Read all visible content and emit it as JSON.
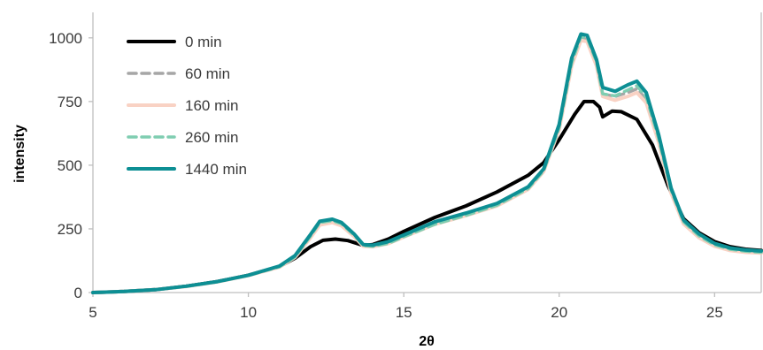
{
  "chart_data": {
    "type": "line",
    "title": "",
    "xlabel": "2θ",
    "ylabel": "intensity",
    "xlim": [
      5,
      26.5
    ],
    "ylim": [
      0,
      1100
    ],
    "x_ticks": [
      5,
      10,
      15,
      20,
      25
    ],
    "y_ticks": [
      0,
      250,
      500,
      750,
      1000
    ],
    "grid": false,
    "legend_position": "top-left",
    "series": [
      {
        "name": "0 min",
        "color": "#000000",
        "dash": "solid",
        "points": [
          [
            5,
            0
          ],
          [
            6,
            4
          ],
          [
            7,
            11
          ],
          [
            8,
            25
          ],
          [
            9,
            43
          ],
          [
            10,
            68
          ],
          [
            11,
            102
          ],
          [
            11.5,
            135
          ],
          [
            12,
            180
          ],
          [
            12.4,
            205
          ],
          [
            12.8,
            210
          ],
          [
            13.2,
            204
          ],
          [
            13.7,
            185
          ],
          [
            14,
            188
          ],
          [
            14.5,
            210
          ],
          [
            15,
            240
          ],
          [
            16,
            295
          ],
          [
            17,
            340
          ],
          [
            18,
            395
          ],
          [
            19,
            460
          ],
          [
            19.5,
            510
          ],
          [
            20,
            600
          ],
          [
            20.5,
            700
          ],
          [
            20.8,
            750
          ],
          [
            21.1,
            750
          ],
          [
            21.3,
            728
          ],
          [
            21.4,
            690
          ],
          [
            21.7,
            712
          ],
          [
            22,
            710
          ],
          [
            22.5,
            680
          ],
          [
            23,
            580
          ],
          [
            23.5,
            420
          ],
          [
            24,
            290
          ],
          [
            24.5,
            235
          ],
          [
            25,
            200
          ],
          [
            25.5,
            180
          ],
          [
            26,
            170
          ],
          [
            26.5,
            165
          ]
        ]
      },
      {
        "name": "60 min",
        "color": "#a6a6a6",
        "dash": "dashed",
        "points": [
          [
            5,
            0
          ],
          [
            6,
            4
          ],
          [
            7,
            11
          ],
          [
            8,
            24
          ],
          [
            9,
            42
          ],
          [
            10,
            67
          ],
          [
            11,
            102
          ],
          [
            11.5,
            140
          ],
          [
            12,
            220
          ],
          [
            12.3,
            272
          ],
          [
            12.7,
            280
          ],
          [
            13,
            268
          ],
          [
            13.4,
            225
          ],
          [
            13.7,
            185
          ],
          [
            14,
            183
          ],
          [
            14.5,
            195
          ],
          [
            15,
            220
          ],
          [
            16,
            270
          ],
          [
            17,
            305
          ],
          [
            18,
            345
          ],
          [
            19,
            410
          ],
          [
            19.5,
            480
          ],
          [
            20,
            650
          ],
          [
            20.4,
            900
          ],
          [
            20.7,
            1000
          ],
          [
            20.9,
            995
          ],
          [
            21.2,
            900
          ],
          [
            21.4,
            780
          ],
          [
            21.8,
            770
          ],
          [
            22.2,
            785
          ],
          [
            22.5,
            800
          ],
          [
            22.8,
            760
          ],
          [
            23.2,
            600
          ],
          [
            23.6,
            400
          ],
          [
            24,
            280
          ],
          [
            24.5,
            225
          ],
          [
            25,
            190
          ],
          [
            25.5,
            172
          ],
          [
            26,
            164
          ],
          [
            26.5,
            160
          ]
        ]
      },
      {
        "name": "160 min",
        "color": "#f9d2c4",
        "dash": "solid",
        "points": [
          [
            5,
            0
          ],
          [
            6,
            4
          ],
          [
            7,
            11
          ],
          [
            8,
            24
          ],
          [
            9,
            42
          ],
          [
            10,
            67
          ],
          [
            11,
            100
          ],
          [
            11.5,
            138
          ],
          [
            12,
            215
          ],
          [
            12.3,
            265
          ],
          [
            12.7,
            275
          ],
          [
            13,
            262
          ],
          [
            13.4,
            220
          ],
          [
            13.7,
            182
          ],
          [
            14,
            180
          ],
          [
            14.5,
            192
          ],
          [
            15,
            218
          ],
          [
            16,
            268
          ],
          [
            17,
            302
          ],
          [
            18,
            340
          ],
          [
            19,
            405
          ],
          [
            19.5,
            475
          ],
          [
            20,
            640
          ],
          [
            20.4,
            890
          ],
          [
            20.7,
            990
          ],
          [
            20.9,
            985
          ],
          [
            21.2,
            890
          ],
          [
            21.4,
            770
          ],
          [
            21.8,
            755
          ],
          [
            22.2,
            770
          ],
          [
            22.5,
            785
          ],
          [
            22.8,
            745
          ],
          [
            23.2,
            590
          ],
          [
            23.6,
            390
          ],
          [
            24,
            270
          ],
          [
            24.5,
            215
          ],
          [
            25,
            182
          ],
          [
            25.5,
            165
          ],
          [
            26,
            158
          ],
          [
            26.5,
            155
          ]
        ]
      },
      {
        "name": "260 min",
        "color": "#7fcdb1",
        "dash": "dashed",
        "points": [
          [
            5,
            0
          ],
          [
            6,
            4
          ],
          [
            7,
            11
          ],
          [
            8,
            24
          ],
          [
            9,
            42
          ],
          [
            10,
            67
          ],
          [
            11,
            101
          ],
          [
            11.5,
            140
          ],
          [
            12,
            222
          ],
          [
            12.3,
            275
          ],
          [
            12.7,
            282
          ],
          [
            13,
            270
          ],
          [
            13.4,
            226
          ],
          [
            13.7,
            184
          ],
          [
            14,
            181
          ],
          [
            14.5,
            193
          ],
          [
            15,
            219
          ],
          [
            16,
            268
          ],
          [
            17,
            303
          ],
          [
            18,
            343
          ],
          [
            19,
            408
          ],
          [
            19.5,
            478
          ],
          [
            20,
            648
          ],
          [
            20.4,
            902
          ],
          [
            20.7,
            1005
          ],
          [
            20.9,
            1000
          ],
          [
            21.2,
            905
          ],
          [
            21.4,
            780
          ],
          [
            21.8,
            772
          ],
          [
            22.2,
            795
          ],
          [
            22.5,
            812
          ],
          [
            22.8,
            768
          ],
          [
            23.2,
            605
          ],
          [
            23.6,
            402
          ],
          [
            24,
            278
          ],
          [
            24.5,
            222
          ],
          [
            25,
            187
          ],
          [
            25.5,
            170
          ],
          [
            26,
            162
          ],
          [
            26.5,
            158
          ]
        ]
      },
      {
        "name": "1440 min",
        "color": "#0d8f94",
        "dash": "solid",
        "points": [
          [
            5,
            0
          ],
          [
            6,
            4
          ],
          [
            7,
            11
          ],
          [
            8,
            25
          ],
          [
            9,
            43
          ],
          [
            10,
            68
          ],
          [
            11,
            104
          ],
          [
            11.5,
            145
          ],
          [
            12,
            228
          ],
          [
            12.3,
            280
          ],
          [
            12.7,
            288
          ],
          [
            13,
            275
          ],
          [
            13.4,
            230
          ],
          [
            13.7,
            188
          ],
          [
            14,
            186
          ],
          [
            14.5,
            200
          ],
          [
            15,
            226
          ],
          [
            16,
            278
          ],
          [
            17,
            312
          ],
          [
            18,
            350
          ],
          [
            19,
            415
          ],
          [
            19.5,
            485
          ],
          [
            20,
            660
          ],
          [
            20.4,
            920
          ],
          [
            20.7,
            1015
          ],
          [
            20.9,
            1010
          ],
          [
            21.2,
            915
          ],
          [
            21.4,
            805
          ],
          [
            21.8,
            790
          ],
          [
            22.2,
            815
          ],
          [
            22.5,
            830
          ],
          [
            22.8,
            785
          ],
          [
            23.2,
            620
          ],
          [
            23.6,
            410
          ],
          [
            24,
            285
          ],
          [
            24.5,
            230
          ],
          [
            25,
            193
          ],
          [
            25.5,
            175
          ],
          [
            26,
            167
          ],
          [
            26.5,
            163
          ]
        ]
      }
    ]
  }
}
